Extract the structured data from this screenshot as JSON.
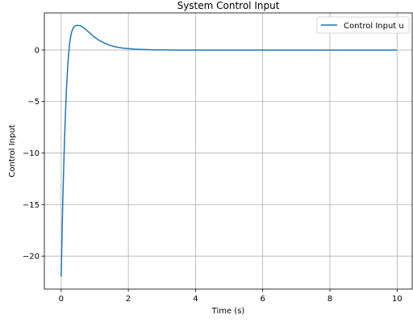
{
  "chart_data": {
    "type": "line",
    "title": "System Control Input",
    "xlabel": "Time (s)",
    "ylabel": "Control Input",
    "xlim": [
      -0.5,
      10.45
    ],
    "ylim": [
      -23.2,
      3.6
    ],
    "xticks": [
      0,
      2,
      4,
      6,
      8,
      10
    ],
    "yticks": [
      0,
      -5,
      -10,
      -15,
      -20
    ],
    "xtick_labels": [
      "0",
      "2",
      "4",
      "6",
      "8",
      "10"
    ],
    "ytick_labels": [
      "0",
      "−5",
      "−10",
      "−15",
      "−20"
    ],
    "grid": true,
    "legend_position": "top-right",
    "series": [
      {
        "name": "Control Input u",
        "color": "#1f77b4",
        "x": [
          0,
          0.05,
          0.1,
          0.15,
          0.2,
          0.25,
          0.3,
          0.35,
          0.4,
          0.45,
          0.5,
          0.55,
          0.6,
          0.65,
          0.7,
          0.8,
          0.9,
          1.0,
          1.1,
          1.2,
          1.3,
          1.4,
          1.5,
          1.6,
          1.8,
          2.0,
          2.2,
          2.4,
          2.6,
          2.8,
          3.0,
          3.5,
          4.0,
          5.0,
          6.0,
          7.0,
          8.0,
          9.0,
          10.0
        ],
        "y": [
          -22.0,
          -14.4,
          -8.6,
          -4.3,
          -1.3,
          0.6,
          1.6,
          2.1,
          2.3,
          2.38,
          2.4,
          2.37,
          2.3,
          2.2,
          2.08,
          1.8,
          1.5,
          1.24,
          1.0,
          0.82,
          0.66,
          0.52,
          0.41,
          0.32,
          0.2,
          0.13,
          0.08,
          0.05,
          0.03,
          0.02,
          0.01,
          0.0,
          0.0,
          0.0,
          0.0,
          0.0,
          0.0,
          0.0,
          0.0
        ]
      }
    ]
  }
}
